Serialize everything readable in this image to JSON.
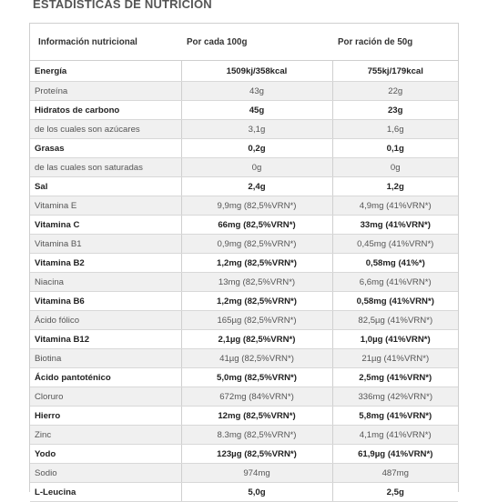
{
  "title": "ESTADÍSTICAS DE NUTRICIÓN",
  "headers": [
    "Información nutricional",
    "Por cada 100g",
    "Por ración de 50g"
  ],
  "rows": [
    {
      "name": "Energía",
      "per100": "1509kj/358kcal",
      "perServing": "755kj/179kcal",
      "bold": true
    },
    {
      "name": "Proteína",
      "per100": "43g",
      "perServing": "22g",
      "bold": false
    },
    {
      "name": "Hidratos de carbono",
      "per100": "45g",
      "perServing": "23g",
      "bold": true
    },
    {
      "name": "de los cuales son azúcares",
      "per100": "3,1g",
      "perServing": "1,6g",
      "bold": false
    },
    {
      "name": "Grasas",
      "per100": "0,2g",
      "perServing": "0,1g",
      "bold": true
    },
    {
      "name": "de las cuales son saturadas",
      "per100": "0g",
      "perServing": "0g",
      "bold": false
    },
    {
      "name": "Sal",
      "per100": "2,4g",
      "perServing": "1,2g",
      "bold": true
    },
    {
      "name": "Vitamina E",
      "per100": "9,9mg (82,5%VRN*)",
      "perServing": "4,9mg (41%VRN*)",
      "bold": false
    },
    {
      "name": "Vitamina C",
      "per100": "66mg (82,5%VRN*)",
      "perServing": "33mg (41%VRN*)",
      "bold": true
    },
    {
      "name": "Vitamina B1",
      "per100": "0,9mg (82,5%VRN*)",
      "perServing": "0,45mg (41%VRN*)",
      "bold": false
    },
    {
      "name": "Vitamina B2",
      "per100": "1,2mg (82,5%VRN*)",
      "perServing": "0,58mg (41%*)",
      "bold": true
    },
    {
      "name": "Niacina",
      "per100": "13mg (82,5%VRN*)",
      "perServing": "6,6mg (41%VRN*)",
      "bold": false
    },
    {
      "name": "Vitamina B6",
      "per100": "1,2mg (82,5%VRN*)",
      "perServing": "0,58mg (41%VRN*)",
      "bold": true
    },
    {
      "name": "Ácido fólico",
      "per100": "165µg (82,5%VRN*)",
      "perServing": "82,5µg (41%VRN*)",
      "bold": false
    },
    {
      "name": "Vitamina B12",
      "per100": "2,1µg (82,5%VRN*)",
      "perServing": "1,0µg (41%VRN*)",
      "bold": true
    },
    {
      "name": "Biotina",
      "per100": "41µg (82,5%VRN*)",
      "perServing": "21µg (41%VRN*)",
      "bold": false
    },
    {
      "name": "Ácido pantoténico",
      "per100": "5,0mg (82,5%VRN*)",
      "perServing": "2,5mg (41%VRN*)",
      "bold": true
    },
    {
      "name": "Cloruro",
      "per100": "672mg (84%VRN*)",
      "perServing": "336mg (42%VRN*)",
      "bold": false
    },
    {
      "name": "Hierro",
      "per100": "12mg (82,5%VRN*)",
      "perServing": "5,8mg (41%VRN*)",
      "bold": true
    },
    {
      "name": "Zinc",
      "per100": "8.3mg (82,5%VRN*)",
      "perServing": "4,1mg (41%VRN*)",
      "bold": false
    },
    {
      "name": "Yodo",
      "per100": "123µg (82,5%VRN*)",
      "perServing": "61,9µg (41%VRN*)",
      "bold": true
    },
    {
      "name": "Sodio",
      "per100": "974mg",
      "perServing": "487mg",
      "bold": false
    },
    {
      "name": "L-Leucina",
      "per100": "5,0g",
      "perServing": "2,5g",
      "bold": true
    }
  ]
}
